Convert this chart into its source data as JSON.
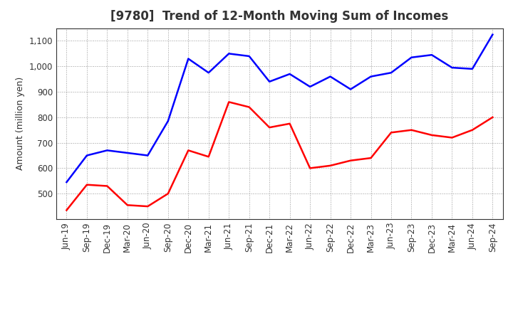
{
  "title": "[9780]  Trend of 12-Month Moving Sum of Incomes",
  "ylabel": "Amount (million yen)",
  "x_labels": [
    "Jun-19",
    "Sep-19",
    "Dec-19",
    "Mar-20",
    "Jun-20",
    "Sep-20",
    "Dec-20",
    "Mar-21",
    "Jun-21",
    "Sep-21",
    "Dec-21",
    "Mar-22",
    "Jun-22",
    "Sep-22",
    "Dec-22",
    "Mar-23",
    "Jun-23",
    "Sep-23",
    "Dec-23",
    "Mar-24",
    "Jun-24",
    "Sep-24"
  ],
  "ordinary_income": [
    545,
    650,
    670,
    660,
    650,
    785,
    1030,
    975,
    1050,
    1040,
    940,
    970,
    920,
    960,
    910,
    960,
    975,
    1035,
    1045,
    995,
    990,
    1125
  ],
  "net_income": [
    435,
    535,
    530,
    455,
    450,
    500,
    670,
    645,
    860,
    840,
    760,
    775,
    600,
    610,
    630,
    640,
    740,
    750,
    730,
    720,
    750,
    800
  ],
  "ordinary_color": "#0000ff",
  "net_color": "#ff0000",
  "ylim_min": 400,
  "ylim_max": 1150,
  "yticks": [
    500,
    600,
    700,
    800,
    900,
    1000,
    1100
  ],
  "background_color": "#ffffff",
  "grid_color": "#999999",
  "title_fontsize": 12,
  "title_color": "#333333",
  "axis_label_fontsize": 9,
  "tick_fontsize": 8.5,
  "legend_fontsize": 9
}
